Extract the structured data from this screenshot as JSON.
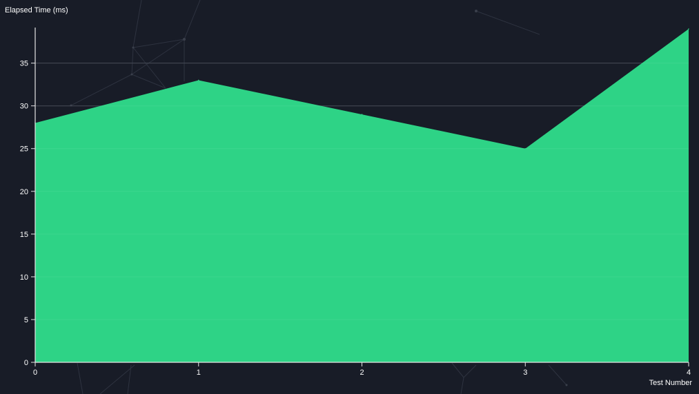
{
  "chart_data": {
    "type": "area",
    "x": [
      0,
      1,
      2,
      3,
      4
    ],
    "series": [
      {
        "values": [
          28,
          33,
          29,
          25,
          39
        ]
      }
    ],
    "xlabel": "Test Number",
    "ylabel": "Elapsed Time (ms)",
    "xlim": [
      0,
      4
    ],
    "ylim": [
      0,
      39
    ],
    "x_ticks": [
      0,
      1,
      2,
      3,
      4
    ],
    "y_ticks": [
      0,
      5,
      10,
      15,
      20,
      25,
      30,
      35
    ],
    "grid": "horizontal",
    "colors": {
      "background": "#181c27",
      "area": "#2ed386",
      "text": "#ffffff"
    }
  }
}
